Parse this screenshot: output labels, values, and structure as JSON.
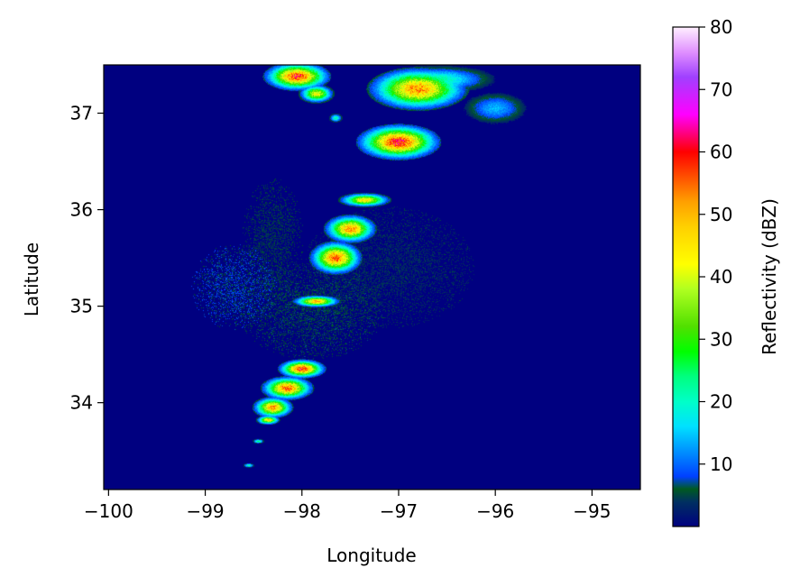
{
  "chart_data": {
    "type": "heatmap",
    "title": "",
    "xlabel": "Longitude",
    "ylabel": "Latitude",
    "xlim": [
      -100.05,
      -94.5
    ],
    "ylim": [
      33.1,
      37.5
    ],
    "xticks": [
      -100,
      -99,
      -98,
      -97,
      -96,
      -95
    ],
    "xtick_labels": [
      "−100",
      "−99",
      "−98",
      "−97",
      "−96",
      "−95"
    ],
    "yticks": [
      34,
      35,
      36,
      37
    ],
    "ytick_labels": [
      "34",
      "35",
      "36",
      "37"
    ],
    "background_value": 0,
    "colorbar": {
      "label": "Reflectivity (dBZ)",
      "range": [
        0,
        80
      ],
      "ticks": [
        10,
        20,
        30,
        40,
        50,
        60,
        70,
        80
      ],
      "tick_labels": [
        "10",
        "20",
        "30",
        "40",
        "50",
        "60",
        "70",
        "80"
      ],
      "colormap": "gist_ncar",
      "color_stops": [
        {
          "value": 0,
          "color": "#000080"
        },
        {
          "value": 4,
          "color": "#003060"
        },
        {
          "value": 6,
          "color": "#005a20"
        },
        {
          "value": 8,
          "color": "#0040ff"
        },
        {
          "value": 12,
          "color": "#0090ff"
        },
        {
          "value": 16,
          "color": "#00e0ff"
        },
        {
          "value": 20,
          "color": "#00ffc8"
        },
        {
          "value": 24,
          "color": "#00ff80"
        },
        {
          "value": 28,
          "color": "#00ff00"
        },
        {
          "value": 32,
          "color": "#50e000"
        },
        {
          "value": 38,
          "color": "#b0ff20"
        },
        {
          "value": 42,
          "color": "#ffff00"
        },
        {
          "value": 48,
          "color": "#ffd000"
        },
        {
          "value": 52,
          "color": "#ffa000"
        },
        {
          "value": 56,
          "color": "#ff5000"
        },
        {
          "value": 60,
          "color": "#ff0000"
        },
        {
          "value": 63,
          "color": "#ff0080"
        },
        {
          "value": 66,
          "color": "#ff00ff"
        },
        {
          "value": 72,
          "color": "#a040ff"
        },
        {
          "value": 76,
          "color": "#e090ff"
        },
        {
          "value": 80,
          "color": "#fff0ff"
        }
      ]
    },
    "cells": [
      {
        "lon": -98.05,
        "lat": 37.38,
        "rx": 0.28,
        "ry": 0.12,
        "peak": 58
      },
      {
        "lon": -97.85,
        "lat": 37.2,
        "rx": 0.15,
        "ry": 0.08,
        "peak": 42
      },
      {
        "lon": -96.8,
        "lat": 37.25,
        "rx": 0.42,
        "ry": 0.18,
        "peak": 52
      },
      {
        "lon": -97.0,
        "lat": 36.7,
        "rx": 0.35,
        "ry": 0.15,
        "peak": 60
      },
      {
        "lon": -96.6,
        "lat": 37.35,
        "rx": 0.5,
        "ry": 0.12,
        "peak": 22
      },
      {
        "lon": -96.0,
        "lat": 37.05,
        "rx": 0.3,
        "ry": 0.15,
        "peak": 14
      },
      {
        "lon": -97.35,
        "lat": 36.1,
        "rx": 0.22,
        "ry": 0.06,
        "peak": 45
      },
      {
        "lon": -97.5,
        "lat": 35.8,
        "rx": 0.22,
        "ry": 0.12,
        "peak": 52
      },
      {
        "lon": -97.65,
        "lat": 35.5,
        "rx": 0.22,
        "ry": 0.14,
        "peak": 55
      },
      {
        "lon": -97.85,
        "lat": 35.05,
        "rx": 0.2,
        "ry": 0.05,
        "peak": 50
      },
      {
        "lon": -98.0,
        "lat": 34.35,
        "rx": 0.2,
        "ry": 0.08,
        "peak": 58
      },
      {
        "lon": -98.15,
        "lat": 34.15,
        "rx": 0.22,
        "ry": 0.1,
        "peak": 55
      },
      {
        "lon": -98.3,
        "lat": 33.95,
        "rx": 0.17,
        "ry": 0.09,
        "peak": 52
      },
      {
        "lon": -98.35,
        "lat": 33.82,
        "rx": 0.1,
        "ry": 0.04,
        "peak": 45
      },
      {
        "lon": -98.45,
        "lat": 33.6,
        "rx": 0.05,
        "ry": 0.02,
        "peak": 25
      },
      {
        "lon": -98.55,
        "lat": 33.35,
        "rx": 0.05,
        "ry": 0.02,
        "peak": 22
      },
      {
        "lon": -97.65,
        "lat": 36.95,
        "rx": 0.06,
        "ry": 0.04,
        "peak": 22
      },
      {
        "lon": -98.7,
        "lat": 35.2,
        "rx": 0.35,
        "ry": 0.35,
        "peak": 9
      },
      {
        "lon": -97.9,
        "lat": 34.95,
        "rx": 0.6,
        "ry": 0.4,
        "peak": 7
      },
      {
        "lon": -98.3,
        "lat": 35.7,
        "rx": 0.25,
        "ry": 0.5,
        "peak": 6
      },
      {
        "lon": -97.1,
        "lat": 35.4,
        "rx": 0.7,
        "ry": 0.5,
        "peak": 5
      }
    ]
  }
}
